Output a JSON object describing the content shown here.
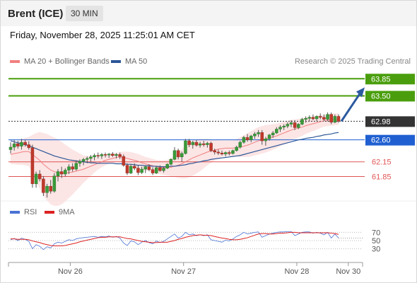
{
  "header": {
    "title": "Brent (ICE)",
    "timeframe": "30 MIN"
  },
  "datetime": "Friday, November 28, 2025 11:25:01 AM CET",
  "legend": {
    "ma20": {
      "label": "MA 20 + Bollinger Bands",
      "color": "#f08080"
    },
    "ma50": {
      "label": "MA 50",
      "color": "#2c5697"
    },
    "rsi": {
      "label": "RSI",
      "color": "#4a72d4"
    },
    "ma9": {
      "label": "9MA",
      "color": "#dd2222"
    }
  },
  "credit": "Research © 2025 Trading Central",
  "chart_data": {
    "type": "candlestick",
    "price_range": [
      61.35,
      64.1
    ],
    "x_range": [
      "2025-11-25 15:00",
      "2025-11-28 11:30"
    ],
    "x_ticks": [
      {
        "label": "Nov 26",
        "t": "2025-11-26 03:00"
      },
      {
        "label": "Nov 27",
        "t": "2025-11-27 01:00"
      },
      {
        "label": "Nov 28",
        "t": "2025-11-27 23:00"
      },
      {
        "label": "Nov 30",
        "t": "2025-11-28 09:00"
      }
    ],
    "levels": [
      {
        "value": 63.85,
        "label": "63.85",
        "color": "#4a9e0d",
        "kind": "resistance"
      },
      {
        "value": 63.5,
        "label": "63.50",
        "color": "#4a9e0d",
        "kind": "resistance"
      },
      {
        "value": 62.98,
        "label": "62.98",
        "color": "#333333",
        "kind": "last"
      },
      {
        "value": 62.6,
        "label": "62.60",
        "color": "#1f5fd1",
        "kind": "pivot"
      },
      {
        "value": 62.15,
        "label": "62.15",
        "color": "#e05555",
        "kind": "support"
      },
      {
        "value": 61.85,
        "label": "61.85",
        "color": "#e05555",
        "kind": "support"
      }
    ],
    "arrow": {
      "from": 62.98,
      "to": 63.6,
      "color": "#2c5aa0"
    },
    "ohlc": [
      [
        62.4,
        62.55,
        62.32,
        62.45
      ],
      [
        62.45,
        62.6,
        62.38,
        62.52
      ],
      [
        62.52,
        62.58,
        62.42,
        62.47
      ],
      [
        62.47,
        62.62,
        62.4,
        62.55
      ],
      [
        62.55,
        62.6,
        62.46,
        62.5
      ],
      [
        62.5,
        62.57,
        62.4,
        62.44
      ],
      [
        62.44,
        62.5,
        61.62,
        61.7
      ],
      [
        61.7,
        61.95,
        61.62,
        61.9
      ],
      [
        61.9,
        61.98,
        61.75,
        61.8
      ],
      [
        61.8,
        61.86,
        61.45,
        61.52
      ],
      [
        61.52,
        61.7,
        61.42,
        61.65
      ],
      [
        61.65,
        61.78,
        61.5,
        61.55
      ],
      [
        61.55,
        61.92,
        61.52,
        61.86
      ],
      [
        61.86,
        62.0,
        61.75,
        61.95
      ],
      [
        61.95,
        62.05,
        61.82,
        61.9
      ],
      [
        61.9,
        62.02,
        61.85,
        61.98
      ],
      [
        61.98,
        62.1,
        61.9,
        62.05
      ],
      [
        62.05,
        62.12,
        61.95,
        62.0
      ],
      [
        62.0,
        62.18,
        61.97,
        62.12
      ],
      [
        62.12,
        62.2,
        62.05,
        62.16
      ],
      [
        62.16,
        62.23,
        62.08,
        62.2
      ],
      [
        62.2,
        62.26,
        62.12,
        62.22
      ],
      [
        62.22,
        62.29,
        62.15,
        62.25
      ],
      [
        62.25,
        62.32,
        62.18,
        62.28
      ],
      [
        62.28,
        62.34,
        62.22,
        62.27
      ],
      [
        62.27,
        62.33,
        62.21,
        62.3
      ],
      [
        62.3,
        62.34,
        62.24,
        62.29
      ],
      [
        62.29,
        62.33,
        62.23,
        62.31
      ],
      [
        62.31,
        62.35,
        62.25,
        62.28
      ],
      [
        62.28,
        62.33,
        62.22,
        62.3
      ],
      [
        62.3,
        62.34,
        62.21,
        62.26
      ],
      [
        62.26,
        62.3,
        62.05,
        62.08
      ],
      [
        62.08,
        62.12,
        61.88,
        61.92
      ],
      [
        61.92,
        62.1,
        61.9,
        62.06
      ],
      [
        62.06,
        62.12,
        61.98,
        62.02
      ],
      [
        62.02,
        62.08,
        61.88,
        61.93
      ],
      [
        61.93,
        62.05,
        61.9,
        62.0
      ],
      [
        62.0,
        62.08,
        61.92,
        62.05
      ],
      [
        62.05,
        62.1,
        61.96,
        61.99
      ],
      [
        61.99,
        62.04,
        61.88,
        61.92
      ],
      [
        61.92,
        62.06,
        61.9,
        62.03
      ],
      [
        62.03,
        62.08,
        61.95,
        61.97
      ],
      [
        61.97,
        62.05,
        61.93,
        62.02
      ],
      [
        62.02,
        62.12,
        62.0,
        62.1
      ],
      [
        62.1,
        62.22,
        62.08,
        62.2
      ],
      [
        62.2,
        62.45,
        62.18,
        62.38
      ],
      [
        62.38,
        62.42,
        62.2,
        62.25
      ],
      [
        62.25,
        62.36,
        62.15,
        62.32
      ],
      [
        62.32,
        62.62,
        62.3,
        62.58
      ],
      [
        62.58,
        62.62,
        62.45,
        62.5
      ],
      [
        62.5,
        62.58,
        62.42,
        62.55
      ],
      [
        62.55,
        62.6,
        62.46,
        62.49
      ],
      [
        62.49,
        62.56,
        62.44,
        62.52
      ],
      [
        62.52,
        62.58,
        62.46,
        62.5
      ],
      [
        62.5,
        62.56,
        62.44,
        62.53
      ],
      [
        62.53,
        62.56,
        62.35,
        62.38
      ],
      [
        62.38,
        62.42,
        62.3,
        62.35
      ],
      [
        62.35,
        62.4,
        62.29,
        62.33
      ],
      [
        62.33,
        62.38,
        62.28,
        62.31
      ],
      [
        62.31,
        62.36,
        62.26,
        62.34
      ],
      [
        62.34,
        62.38,
        62.28,
        62.32
      ],
      [
        62.32,
        62.4,
        62.3,
        62.38
      ],
      [
        62.38,
        62.48,
        62.36,
        62.45
      ],
      [
        62.45,
        62.58,
        62.42,
        62.55
      ],
      [
        62.55,
        62.68,
        62.52,
        62.65
      ],
      [
        62.65,
        62.72,
        62.56,
        62.6
      ],
      [
        62.6,
        62.7,
        62.55,
        62.68
      ],
      [
        62.68,
        62.76,
        62.62,
        62.72
      ],
      [
        62.72,
        62.8,
        62.66,
        62.75
      ],
      [
        62.75,
        62.8,
        62.5,
        62.58
      ],
      [
        62.58,
        62.66,
        62.48,
        62.62
      ],
      [
        62.62,
        62.72,
        62.58,
        62.7
      ],
      [
        62.7,
        62.78,
        62.64,
        62.74
      ],
      [
        62.74,
        62.86,
        62.72,
        62.82
      ],
      [
        62.82,
        62.9,
        62.76,
        62.86
      ],
      [
        62.86,
        62.92,
        62.8,
        62.88
      ],
      [
        62.88,
        62.96,
        62.84,
        62.92
      ],
      [
        62.92,
        63.0,
        62.86,
        62.95
      ],
      [
        62.95,
        63.0,
        62.8,
        62.85
      ],
      [
        62.85,
        62.94,
        62.82,
        62.92
      ],
      [
        62.92,
        63.05,
        62.9,
        63.02
      ],
      [
        63.02,
        63.08,
        62.95,
        63.04
      ],
      [
        63.04,
        63.1,
        62.98,
        63.06
      ],
      [
        63.06,
        63.12,
        63.0,
        63.03
      ],
      [
        63.03,
        63.1,
        62.98,
        63.08
      ],
      [
        63.08,
        63.14,
        63.02,
        63.06
      ],
      [
        63.06,
        63.12,
        62.98,
        63.02
      ],
      [
        63.02,
        63.16,
        62.98,
        63.12
      ],
      [
        63.12,
        63.16,
        62.92,
        62.96
      ],
      [
        62.96,
        63.12,
        62.94,
        63.08
      ],
      [
        63.08,
        63.12,
        62.95,
        62.98
      ]
    ],
    "ma20": [
      62.3,
      62.32,
      62.33,
      62.35,
      62.36,
      62.36,
      62.3,
      62.24,
      62.18,
      62.1,
      62.04,
      61.98,
      61.95,
      61.93,
      61.92,
      61.92,
      61.93,
      61.94,
      61.96,
      61.98,
      62.0,
      62.03,
      62.06,
      62.09,
      62.12,
      62.15,
      62.18,
      62.2,
      62.22,
      62.24,
      62.25,
      62.24,
      62.22,
      62.2,
      62.18,
      62.16,
      62.13,
      62.11,
      62.09,
      62.07,
      62.05,
      62.04,
      62.03,
      62.03,
      62.04,
      62.06,
      62.08,
      62.11,
      62.15,
      62.19,
      62.23,
      62.26,
      62.29,
      62.32,
      62.35,
      62.37,
      62.39,
      62.41,
      62.42,
      62.43,
      62.43,
      62.43,
      62.44,
      62.45,
      62.47,
      62.49,
      62.52,
      62.55,
      62.58,
      62.6,
      62.62,
      62.64,
      62.66,
      62.68,
      62.71,
      62.74,
      62.77,
      62.8,
      62.82,
      62.84,
      62.86,
      62.89,
      62.91,
      62.93,
      62.95,
      62.97,
      62.99,
      63.0,
      63.01,
      63.02,
      63.02
    ],
    "ma50": [
      62.58,
      62.56,
      62.54,
      62.52,
      62.5,
      62.48,
      62.45,
      62.42,
      62.39,
      62.36,
      62.33,
      62.3,
      62.27,
      62.25,
      62.23,
      62.21,
      62.19,
      62.18,
      62.17,
      62.16,
      62.15,
      62.14,
      62.13,
      62.13,
      62.12,
      62.12,
      62.12,
      62.12,
      62.12,
      62.11,
      62.11,
      62.11,
      62.1,
      62.1,
      62.09,
      62.08,
      62.08,
      62.07,
      62.07,
      62.06,
      62.06,
      62.05,
      62.05,
      62.05,
      62.06,
      62.06,
      62.07,
      62.08,
      62.09,
      62.11,
      62.12,
      62.14,
      62.15,
      62.17,
      62.18,
      62.2,
      62.21,
      62.22,
      62.23,
      62.24,
      62.25,
      62.26,
      62.27,
      62.28,
      62.3,
      62.32,
      62.34,
      62.36,
      62.38,
      62.4,
      62.42,
      62.44,
      62.46,
      62.48,
      62.5,
      62.52,
      62.54,
      62.56,
      62.58,
      62.6,
      62.61,
      62.63,
      62.64,
      62.65,
      62.67,
      62.68,
      62.7,
      62.71,
      62.72,
      62.74,
      62.75
    ],
    "bb_width": [
      0.2,
      0.22,
      0.24,
      0.26,
      0.28,
      0.3,
      0.4,
      0.5,
      0.58,
      0.64,
      0.68,
      0.7,
      0.7,
      0.68,
      0.64,
      0.58,
      0.52,
      0.46,
      0.4,
      0.34,
      0.28,
      0.24,
      0.2,
      0.16,
      0.13,
      0.11,
      0.1,
      0.09,
      0.09,
      0.09,
      0.1,
      0.12,
      0.14,
      0.15,
      0.15,
      0.15,
      0.15,
      0.14,
      0.14,
      0.14,
      0.14,
      0.14,
      0.15,
      0.16,
      0.18,
      0.22,
      0.26,
      0.3,
      0.34,
      0.36,
      0.36,
      0.35,
      0.33,
      0.3,
      0.27,
      0.24,
      0.21,
      0.19,
      0.17,
      0.16,
      0.16,
      0.17,
      0.18,
      0.2,
      0.22,
      0.24,
      0.26,
      0.27,
      0.28,
      0.28,
      0.28,
      0.27,
      0.26,
      0.25,
      0.24,
      0.23,
      0.22,
      0.21,
      0.2,
      0.19,
      0.18,
      0.17,
      0.16,
      0.15,
      0.14,
      0.13,
      0.12,
      0.12,
      0.12,
      0.12,
      0.12
    ],
    "rsi": {
      "ticks": [
        70,
        50,
        30
      ],
      "values": [
        52,
        55,
        50,
        56,
        53,
        48,
        30,
        40,
        36,
        28,
        35,
        32,
        42,
        46,
        44,
        48,
        52,
        50,
        54,
        56,
        57,
        58,
        59,
        60,
        58,
        60,
        59,
        61,
        58,
        60,
        56,
        44,
        38,
        49,
        47,
        40,
        46,
        50,
        45,
        42,
        49,
        45,
        48,
        54,
        60,
        66,
        56,
        60,
        70,
        64,
        66,
        62,
        64,
        62,
        64,
        52,
        50,
        48,
        46,
        51,
        49,
        54,
        60,
        64,
        70,
        66,
        68,
        70,
        71,
        58,
        62,
        66,
        68,
        70,
        71,
        71,
        72,
        72,
        62,
        66,
        70,
        71,
        71,
        68,
        70,
        68,
        64,
        70,
        56,
        66,
        56
      ],
      "ma9": [
        54,
        54,
        53,
        53,
        53,
        52,
        49,
        47,
        45,
        42,
        40,
        38,
        37,
        37,
        37,
        38,
        40,
        42,
        44,
        47,
        49,
        51,
        53,
        55,
        57,
        58,
        58,
        59,
        59,
        59,
        59,
        57,
        55,
        54,
        52,
        50,
        48,
        47,
        46,
        45,
        45,
        46,
        46,
        46,
        48,
        50,
        53,
        55,
        58,
        60,
        62,
        63,
        64,
        63,
        63,
        62,
        60,
        58,
        56,
        55,
        53,
        52,
        52,
        53,
        55,
        57,
        60,
        63,
        66,
        67,
        67,
        66,
        66,
        67,
        68,
        68,
        69,
        70,
        70,
        69,
        69,
        69,
        69,
        69,
        69,
        69,
        69,
        69,
        68,
        67,
        65
      ]
    }
  }
}
